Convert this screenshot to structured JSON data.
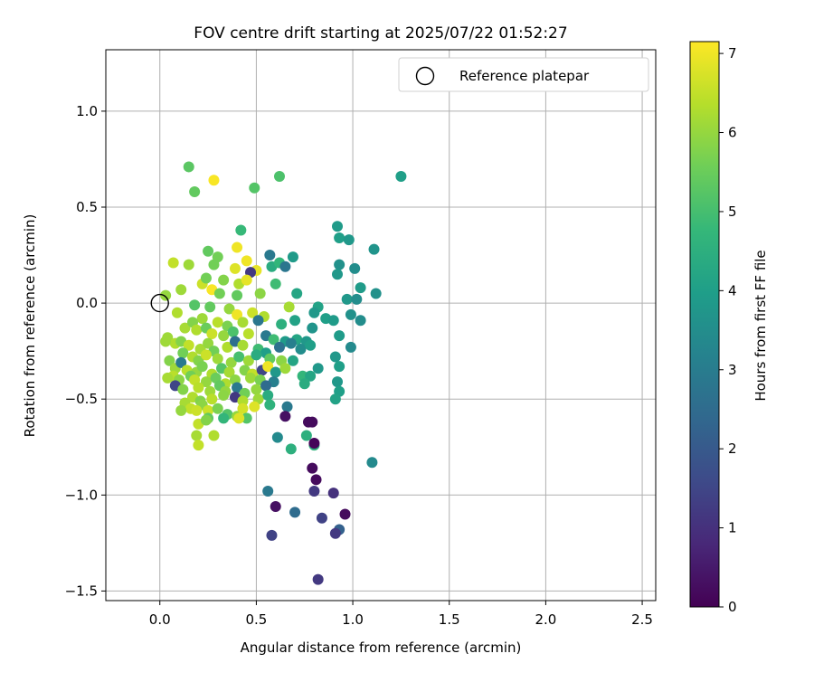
{
  "chart_data": {
    "type": "scatter",
    "title": "FOV centre drift starting at 2025/07/22 01:52:27",
    "xlabel": "Angular distance from reference (arcmin)",
    "ylabel": "Rotation from reference (arcmin)",
    "xlim": [
      -0.28,
      2.57
    ],
    "ylim": [
      -1.55,
      1.32
    ],
    "xticks": [
      0.0,
      0.5,
      1.0,
      1.5,
      2.0,
      2.5
    ],
    "xtick_labels": [
      "0.0",
      "0.5",
      "1.0",
      "1.5",
      "2.0",
      "2.5"
    ],
    "yticks": [
      -1.5,
      -1.0,
      -0.5,
      0.0,
      0.5,
      1.0
    ],
    "ytick_labels": [
      "−1.5",
      "−1.0",
      "−0.5",
      "0.0",
      "0.5",
      "1.0"
    ],
    "grid": true,
    "legend": {
      "placement": "upper-right",
      "label": "Reference platepar"
    },
    "reference_point": {
      "x": 0.0,
      "y": 0.0
    },
    "colorbar": {
      "label": "Hours from first FF file",
      "range": [
        0,
        7.15
      ],
      "ticks": [
        0,
        1,
        2,
        3,
        4,
        5,
        6,
        7
      ],
      "tick_labels": [
        "0",
        "1",
        "2",
        "3",
        "4",
        "5",
        "6",
        "7"
      ],
      "colormap": "viridis",
      "stops": [
        "#440154",
        "#482878",
        "#3e4a89",
        "#31688e",
        "#26828e",
        "#1f9e89",
        "#35b779",
        "#6ece58",
        "#b5de2b",
        "#fde725"
      ]
    },
    "points": [
      [
        0.15,
        0.71,
        5.3
      ],
      [
        0.18,
        0.58,
        5.4
      ],
      [
        0.28,
        0.64,
        7.1
      ],
      [
        0.49,
        0.6,
        5.2
      ],
      [
        0.62,
        0.66,
        5.1
      ],
      [
        1.25,
        0.66,
        4.0
      ],
      [
        0.42,
        0.38,
        4.8
      ],
      [
        0.92,
        0.4,
        3.9
      ],
      [
        0.93,
        0.34,
        4.0
      ],
      [
        0.98,
        0.33,
        3.8
      ],
      [
        0.4,
        0.29,
        7.0
      ],
      [
        0.25,
        0.27,
        5.4
      ],
      [
        0.3,
        0.24,
        5.6
      ],
      [
        0.57,
        0.25,
        2.9
      ],
      [
        0.69,
        0.24,
        3.9
      ],
      [
        1.11,
        0.28,
        3.7
      ],
      [
        0.07,
        0.21,
        6.5
      ],
      [
        0.15,
        0.2,
        6.1
      ],
      [
        0.28,
        0.2,
        5.6
      ],
      [
        0.45,
        0.22,
        7.0
      ],
      [
        0.5,
        0.17,
        6.9
      ],
      [
        0.58,
        0.19,
        4.4
      ],
      [
        0.62,
        0.21,
        4.7
      ],
      [
        0.65,
        0.19,
        2.8
      ],
      [
        0.93,
        0.2,
        3.6
      ],
      [
        1.01,
        0.18,
        3.5
      ],
      [
        0.39,
        0.18,
        6.8
      ],
      [
        0.47,
        0.16,
        1.2
      ],
      [
        0.92,
        0.15,
        3.8
      ],
      [
        0.22,
        0.1,
        6.6
      ],
      [
        0.24,
        0.13,
        5.6
      ],
      [
        0.33,
        0.12,
        5.8
      ],
      [
        0.41,
        0.1,
        6.3
      ],
      [
        0.45,
        0.12,
        6.9
      ],
      [
        0.6,
        0.1,
        4.9
      ],
      [
        1.04,
        0.08,
        3.9
      ],
      [
        0.11,
        0.07,
        6.1
      ],
      [
        0.27,
        0.07,
        7.1
      ],
      [
        0.31,
        0.05,
        5.6
      ],
      [
        0.4,
        0.04,
        5.4
      ],
      [
        0.52,
        0.05,
        5.9
      ],
      [
        0.71,
        0.05,
        4.2
      ],
      [
        0.97,
        0.02,
        3.8
      ],
      [
        1.02,
        0.02,
        3.5
      ],
      [
        1.12,
        0.05,
        3.6
      ],
      [
        0.03,
        0.04,
        6.0
      ],
      [
        0.09,
        -0.05,
        6.3
      ],
      [
        0.18,
        -0.01,
        5.2
      ],
      [
        0.26,
        -0.02,
        5.4
      ],
      [
        0.36,
        -0.03,
        6.0
      ],
      [
        0.4,
        -0.06,
        7.0
      ],
      [
        0.48,
        -0.05,
        6.6
      ],
      [
        0.54,
        -0.07,
        6.3
      ],
      [
        0.67,
        -0.02,
        6.2
      ],
      [
        0.82,
        -0.02,
        4.1
      ],
      [
        0.8,
        -0.05,
        3.8
      ],
      [
        0.86,
        -0.08,
        4.0
      ],
      [
        0.99,
        -0.06,
        3.6
      ],
      [
        1.04,
        -0.09,
        3.5
      ],
      [
        0.22,
        -0.08,
        6.1
      ],
      [
        0.3,
        -0.1,
        6.4
      ],
      [
        0.35,
        -0.12,
        5.7
      ],
      [
        0.43,
        -0.1,
        6.2
      ],
      [
        0.51,
        -0.09,
        2.8
      ],
      [
        0.63,
        -0.11,
        4.5
      ],
      [
        0.7,
        -0.09,
        4.1
      ],
      [
        0.79,
        -0.13,
        3.7
      ],
      [
        0.9,
        -0.09,
        3.9
      ],
      [
        0.13,
        -0.13,
        6.2
      ],
      [
        0.17,
        -0.1,
        5.8
      ],
      [
        0.19,
        -0.14,
        6.3
      ],
      [
        0.24,
        -0.13,
        5.5
      ],
      [
        0.27,
        -0.16,
        6.6
      ],
      [
        0.33,
        -0.17,
        6.0
      ],
      [
        0.38,
        -0.15,
        5.1
      ],
      [
        0.46,
        -0.16,
        6.4
      ],
      [
        0.55,
        -0.17,
        2.9
      ],
      [
        0.59,
        -0.19,
        4.9
      ],
      [
        0.65,
        -0.2,
        3.9
      ],
      [
        0.71,
        -0.19,
        4.2
      ],
      [
        0.76,
        -0.2,
        3.8
      ],
      [
        0.93,
        -0.17,
        3.9
      ],
      [
        0.04,
        -0.18,
        6.1
      ],
      [
        0.08,
        -0.21,
        6.3
      ],
      [
        0.11,
        -0.2,
        5.8
      ],
      [
        0.15,
        -0.22,
        6.5
      ],
      [
        0.21,
        -0.24,
        6.2
      ],
      [
        0.25,
        -0.21,
        6.0
      ],
      [
        0.28,
        -0.25,
        5.6
      ],
      [
        0.35,
        -0.23,
        6.3
      ],
      [
        0.39,
        -0.2,
        2.6
      ],
      [
        0.43,
        -0.22,
        6.2
      ],
      [
        0.51,
        -0.24,
        4.9
      ],
      [
        0.55,
        -0.26,
        4.0
      ],
      [
        0.62,
        -0.23,
        2.7
      ],
      [
        0.68,
        -0.21,
        3.1
      ],
      [
        0.73,
        -0.24,
        3.5
      ],
      [
        0.78,
        -0.22,
        4.0
      ],
      [
        0.99,
        -0.23,
        3.4
      ],
      [
        0.03,
        -0.2,
        6.1
      ],
      [
        0.12,
        -0.26,
        5.6
      ],
      [
        0.17,
        -0.28,
        6.3
      ],
      [
        0.2,
        -0.3,
        5.8
      ],
      [
        0.24,
        -0.27,
        6.6
      ],
      [
        0.3,
        -0.29,
        6.1
      ],
      [
        0.37,
        -0.31,
        6.0
      ],
      [
        0.41,
        -0.28,
        5.0
      ],
      [
        0.46,
        -0.3,
        6.1
      ],
      [
        0.5,
        -0.27,
        4.4
      ],
      [
        0.57,
        -0.29,
        5.4
      ],
      [
        0.63,
        -0.3,
        5.9
      ],
      [
        0.69,
        -0.3,
        4.2
      ],
      [
        0.91,
        -0.28,
        3.8
      ],
      [
        0.05,
        -0.3,
        5.8
      ],
      [
        0.08,
        -0.34,
        6.1
      ],
      [
        0.11,
        -0.31,
        2.9
      ],
      [
        0.14,
        -0.35,
        6.4
      ],
      [
        0.19,
        -0.36,
        6.0
      ],
      [
        0.22,
        -0.33,
        5.7
      ],
      [
        0.27,
        -0.37,
        6.3
      ],
      [
        0.32,
        -0.34,
        5.2
      ],
      [
        0.36,
        -0.36,
        6.2
      ],
      [
        0.44,
        -0.35,
        5.8
      ],
      [
        0.48,
        -0.37,
        6.5
      ],
      [
        0.53,
        -0.35,
        1.5
      ],
      [
        0.56,
        -0.33,
        7.0
      ],
      [
        0.6,
        -0.36,
        3.8
      ],
      [
        0.65,
        -0.34,
        6.1
      ],
      [
        0.74,
        -0.38,
        4.7
      ],
      [
        0.82,
        -0.34,
        3.8
      ],
      [
        0.93,
        -0.33,
        4.0
      ],
      [
        0.07,
        -0.38,
        6.4
      ],
      [
        0.1,
        -0.4,
        5.9
      ],
      [
        0.16,
        -0.38,
        5.6
      ],
      [
        0.18,
        -0.4,
        6.5
      ],
      [
        0.24,
        -0.41,
        6.0
      ],
      [
        0.29,
        -0.39,
        5.5
      ],
      [
        0.34,
        -0.42,
        6.3
      ],
      [
        0.39,
        -0.4,
        5.9
      ],
      [
        0.47,
        -0.39,
        6.1
      ],
      [
        0.52,
        -0.4,
        5.7
      ],
      [
        0.59,
        -0.41,
        3.1
      ],
      [
        0.78,
        -0.38,
        4.2
      ],
      [
        0.92,
        -0.41,
        3.8
      ],
      [
        0.04,
        -0.39,
        6.2
      ],
      [
        0.08,
        -0.43,
        1.5
      ],
      [
        0.12,
        -0.45,
        5.8
      ],
      [
        0.2,
        -0.44,
        6.4
      ],
      [
        0.26,
        -0.46,
        6.1
      ],
      [
        0.31,
        -0.43,
        5.4
      ],
      [
        0.34,
        -0.46,
        6.0
      ],
      [
        0.4,
        -0.44,
        2.9
      ],
      [
        0.44,
        -0.47,
        5.6
      ],
      [
        0.5,
        -0.45,
        6.0
      ],
      [
        0.55,
        -0.43,
        2.5
      ],
      [
        0.75,
        -0.42,
        4.4
      ],
      [
        0.93,
        -0.46,
        4.0
      ],
      [
        0.17,
        -0.49,
        6.3
      ],
      [
        0.21,
        -0.51,
        5.8
      ],
      [
        0.27,
        -0.5,
        6.4
      ],
      [
        0.33,
        -0.48,
        5.9
      ],
      [
        0.39,
        -0.49,
        1.2
      ],
      [
        0.43,
        -0.51,
        6.3
      ],
      [
        0.51,
        -0.5,
        6.1
      ],
      [
        0.56,
        -0.48,
        4.4
      ],
      [
        0.66,
        -0.54,
        2.9
      ],
      [
        0.91,
        -0.5,
        4.1
      ],
      [
        0.13,
        -0.52,
        6.2
      ],
      [
        0.16,
        -0.55,
        6.5
      ],
      [
        0.22,
        -0.53,
        5.9
      ],
      [
        0.25,
        -0.56,
        6.6
      ],
      [
        0.3,
        -0.55,
        5.7
      ],
      [
        0.35,
        -0.58,
        5.2
      ],
      [
        0.4,
        -0.59,
        6.0
      ],
      [
        0.43,
        -0.55,
        6.7
      ],
      [
        0.49,
        -0.54,
        6.8
      ],
      [
        0.57,
        -0.53,
        4.6
      ],
      [
        0.11,
        -0.56,
        6.0
      ],
      [
        0.19,
        -0.56,
        6.6
      ],
      [
        0.25,
        -0.6,
        5.4
      ],
      [
        0.33,
        -0.6,
        4.7
      ],
      [
        0.45,
        -0.6,
        5.2
      ],
      [
        0.65,
        -0.59,
        0.3
      ],
      [
        0.41,
        -0.6,
        6.8
      ],
      [
        0.77,
        -0.62,
        0.2
      ],
      [
        0.79,
        -0.62,
        0.2
      ],
      [
        0.2,
        -0.63,
        6.5
      ],
      [
        0.24,
        -0.61,
        5.8
      ],
      [
        0.19,
        -0.69,
        6.2
      ],
      [
        0.28,
        -0.69,
        6.3
      ],
      [
        0.2,
        -0.74,
        6.5
      ],
      [
        0.61,
        -0.7,
        3.4
      ],
      [
        0.68,
        -0.76,
        4.5
      ],
      [
        0.76,
        -0.69,
        4.5
      ],
      [
        0.8,
        -0.74,
        4.6
      ],
      [
        0.8,
        -0.73,
        0.1
      ],
      [
        0.79,
        -0.86,
        0.2
      ],
      [
        0.81,
        -0.92,
        0.2
      ],
      [
        1.1,
        -0.83,
        3.4
      ],
      [
        0.56,
        -0.98,
        2.9
      ],
      [
        0.8,
        -0.98,
        1.2
      ],
      [
        0.9,
        -0.99,
        1.0
      ],
      [
        0.6,
        -1.06,
        0.3
      ],
      [
        0.7,
        -1.09,
        2.5
      ],
      [
        0.84,
        -1.12,
        1.4
      ],
      [
        0.96,
        -1.1,
        0.2
      ],
      [
        0.93,
        -1.18,
        2.2
      ],
      [
        0.91,
        -1.2,
        1.2
      ],
      [
        0.58,
        -1.21,
        1.4
      ],
      [
        0.82,
        -1.44,
        1.2
      ]
    ]
  }
}
